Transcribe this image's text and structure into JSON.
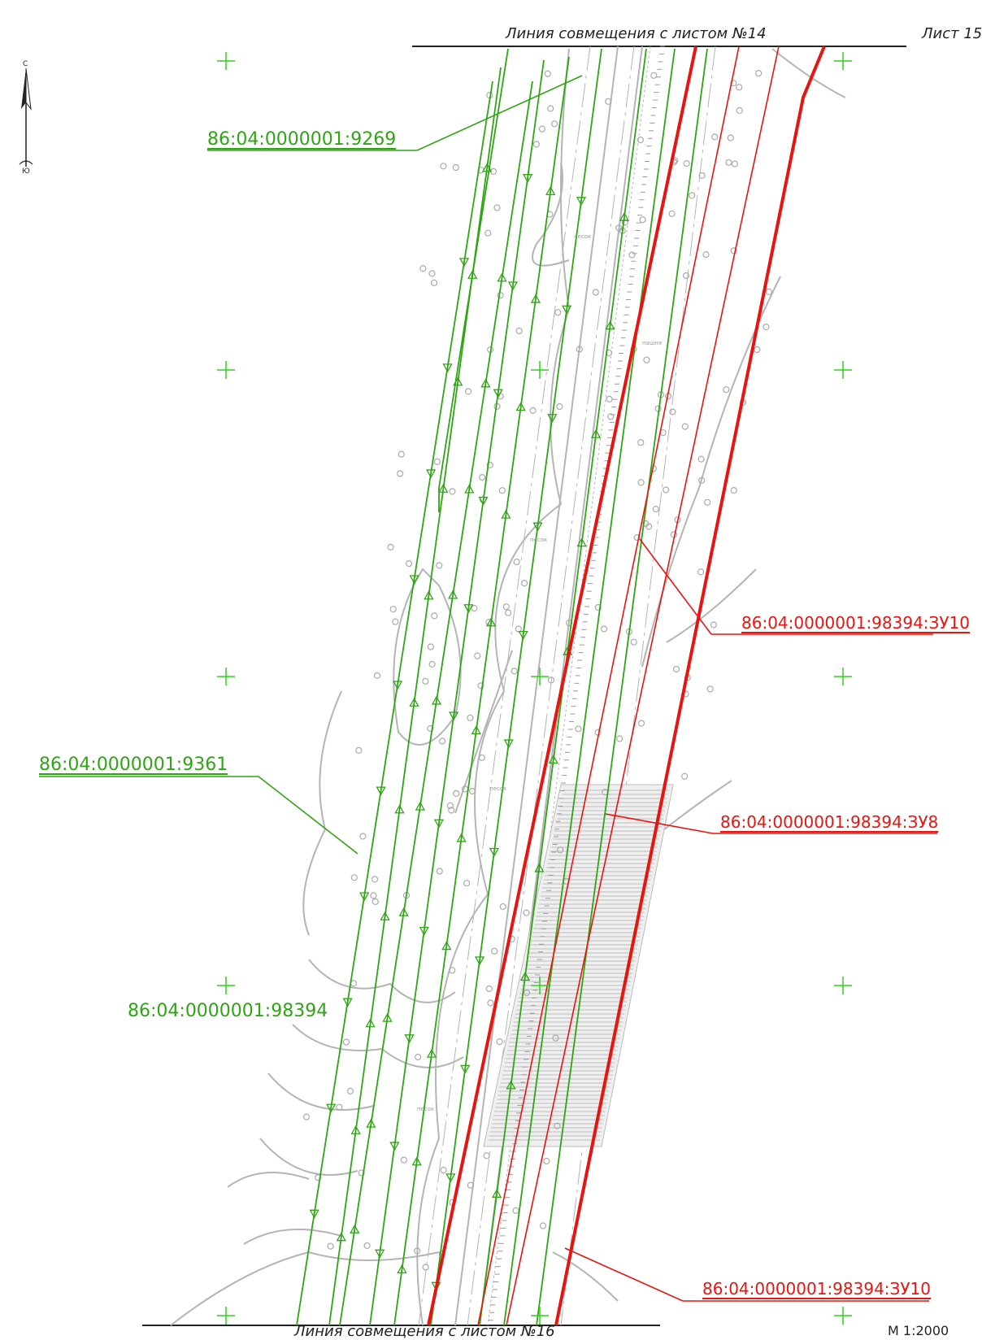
{
  "sheet": {
    "top_line_label": "Линия совмещения с листом №14",
    "bottom_line_label": "Линия совмещения с листом №16",
    "sheet_label": "Лист 15",
    "scale": "М 1:2000"
  },
  "compass": {
    "north": "С",
    "south": "Ю"
  },
  "parcels": {
    "p9269": "86:04:0000001:9269",
    "p9361": "86:04:0000001:9361",
    "p98394": "86:04:0000001:98394",
    "zu10_top": "86:04:0000001:98394:ЗУ10",
    "zu8": "86:04:0000001:98394:ЗУ8",
    "zu10_bottom": "86:04:0000001:98394:ЗУ10"
  },
  "terrain_labels": {
    "sand": "песок",
    "arable": "пашня"
  },
  "colors": {
    "existing_parcel": "#2fa514",
    "new_parcel": "#e8140f",
    "topo": "#b4b4b4",
    "grid": "#2fd21a"
  }
}
